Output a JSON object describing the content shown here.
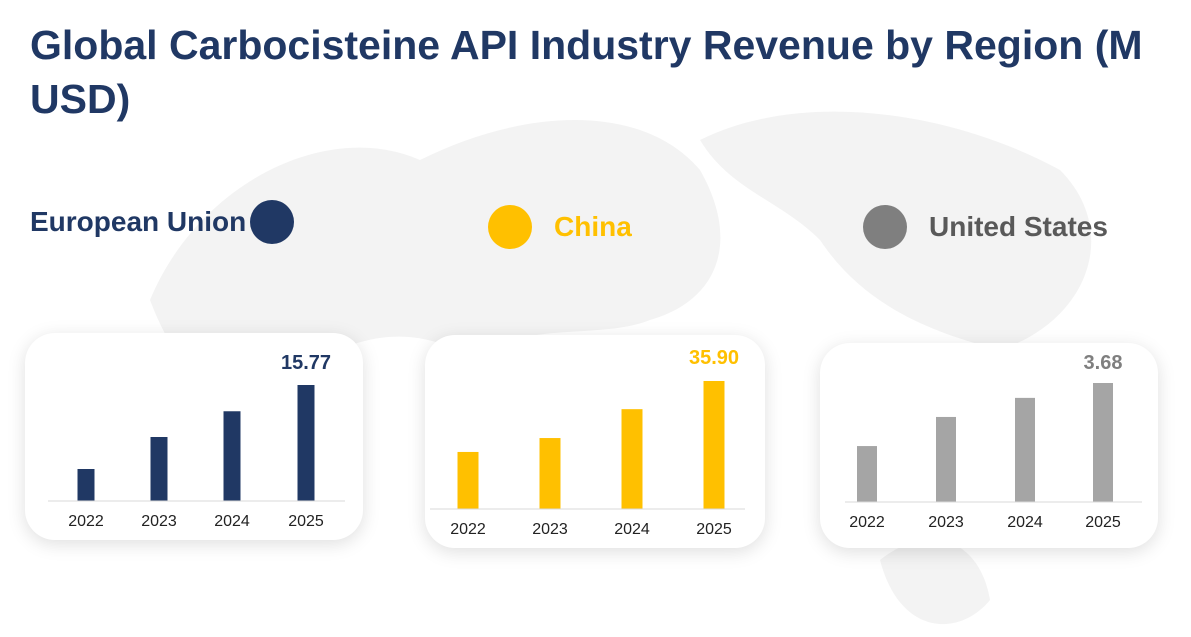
{
  "chart_data": [
    {
      "type": "bar",
      "title": "Global Carbocisteine API Industry Revenue by Region (M USD)",
      "name": "European Union",
      "color": "#203864",
      "categories": [
        "2022",
        "2023",
        "2024",
        "2025"
      ],
      "values": [
        4.35,
        8.7,
        12.2,
        15.77
      ],
      "value_label": "15.77"
    },
    {
      "type": "bar",
      "name": "China",
      "color": "#FFC000",
      "categories": [
        "2022",
        "2023",
        "2024",
        "2025"
      ],
      "values": [
        16.0,
        19.9,
        28.0,
        35.9
      ],
      "value_label": "35.90"
    },
    {
      "type": "bar",
      "name": "United States",
      "color": "#A5A5A5",
      "legend_color": "#7F7F7F",
      "categories": [
        "2022",
        "2023",
        "2024",
        "2025"
      ],
      "values": [
        1.73,
        2.63,
        3.22,
        3.68
      ],
      "value_label": "3.68"
    }
  ],
  "title": "Global Carbocisteine API Industry Revenue by Region (M USD)",
  "legend": [
    {
      "label": "European Union",
      "color": "#203864"
    },
    {
      "label": "China",
      "color": "#FFC000"
    },
    {
      "label": "United States",
      "color": "#7F7F7F"
    }
  ]
}
